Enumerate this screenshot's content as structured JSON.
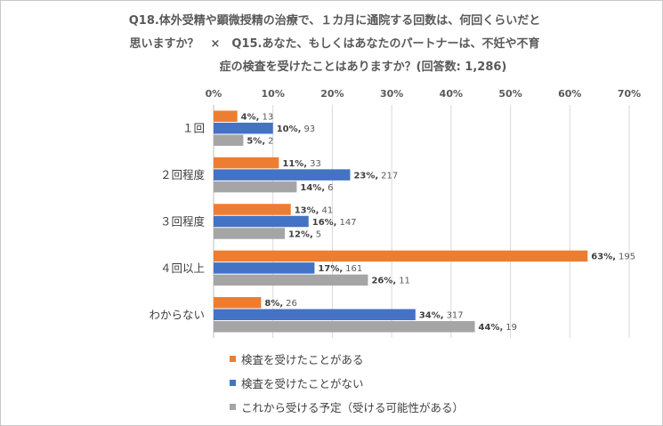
{
  "chart_data": {
    "type": "bar",
    "orientation": "horizontal",
    "title_lines": [
      "Q18.体外受精や顕微授精の治療で、１カ月に通院する回数は、何回くらいだと",
      "思いますか？　×　Q15.あなた、もしくはあなたのパートナーは、不妊や不育",
      "症の検査を受けたことはありますか？(回答数: 1,286)"
    ],
    "categories": [
      "１回",
      "２回程度",
      "３回程度",
      "４回以上",
      "わからない"
    ],
    "x_ticks": [
      "0%",
      "10%",
      "20%",
      "30%",
      "40%",
      "50%",
      "60%",
      "70%"
    ],
    "xlim": [
      0,
      70
    ],
    "grid": true,
    "legend_position": "bottom",
    "series": [
      {
        "name": "検査を受けたことがある",
        "color": "#ED7D31",
        "values": [
          4,
          11,
          13,
          63,
          8
        ],
        "labels_pct": [
          "4%,",
          "11%,",
          "13%,",
          "63%,",
          "8%,"
        ],
        "labels_n": [
          "13",
          "33",
          "41",
          "195",
          "26"
        ]
      },
      {
        "name": "検査を受けたことがない",
        "color": "#4472C4",
        "values": [
          10,
          23,
          16,
          17,
          34
        ],
        "labels_pct": [
          "10%,",
          "23%,",
          "16%,",
          "17%,",
          "34%,"
        ],
        "labels_n": [
          "93",
          "217",
          "147",
          "161",
          "317"
        ]
      },
      {
        "name": "これから受ける予定（受ける可能性がある）",
        "color": "#A5A5A5",
        "values": [
          5,
          14,
          12,
          26,
          44
        ],
        "labels_pct": [
          "5%,",
          "14%,",
          "12%,",
          "26%,",
          "44%,"
        ],
        "labels_n": [
          "2",
          "6",
          "5",
          "11",
          "19"
        ]
      }
    ]
  }
}
